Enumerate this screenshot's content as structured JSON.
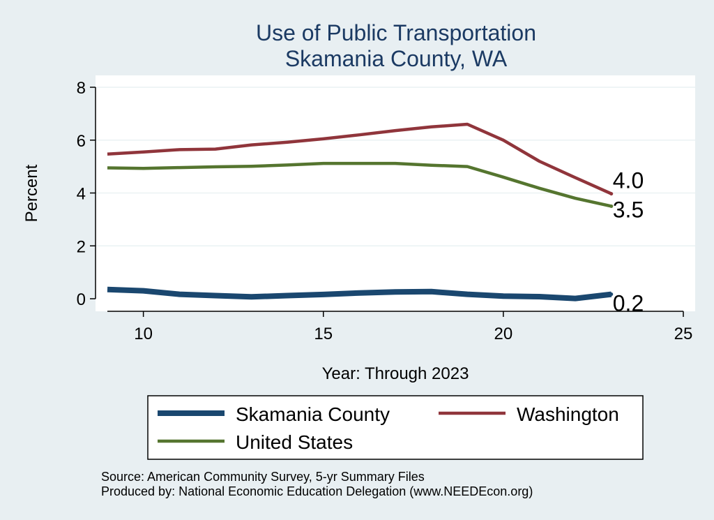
{
  "chart_data": {
    "type": "line",
    "title": "Use of Public Transportation",
    "subtitle": "Skamania County, WA",
    "xlabel": "Year: Through 2023",
    "ylabel": "Percent",
    "xlim": [
      9,
      25
    ],
    "ylim": [
      0,
      8
    ],
    "xticks": [
      10,
      15,
      20,
      25
    ],
    "yticks": [
      0,
      2,
      4,
      6,
      8
    ],
    "grid": true,
    "legend_position": "bottom",
    "series": [
      {
        "name": "Skamania County",
        "color": "#1a476f",
        "x": [
          9,
          10,
          11,
          12,
          13,
          14,
          15,
          16,
          17,
          18,
          19,
          20,
          21,
          22,
          23
        ],
        "y": [
          0.35,
          0.3,
          0.17,
          0.12,
          0.07,
          0.12,
          0.16,
          0.22,
          0.26,
          0.27,
          0.17,
          0.1,
          0.08,
          0.01,
          0.17
        ],
        "end_label": "0.2"
      },
      {
        "name": "Washington",
        "color": "#90353b",
        "x": [
          9,
          10,
          11,
          12,
          13,
          14,
          15,
          16,
          17,
          18,
          19,
          20,
          21,
          22,
          23
        ],
        "y": [
          5.47,
          5.55,
          5.64,
          5.66,
          5.82,
          5.92,
          6.05,
          6.2,
          6.36,
          6.5,
          6.6,
          6.0,
          5.2,
          4.58,
          3.97
        ],
        "end_label": "4.0"
      },
      {
        "name": "United States",
        "color": "#55752f",
        "x": [
          9,
          10,
          11,
          12,
          13,
          14,
          15,
          16,
          17,
          18,
          19,
          20,
          21,
          22,
          23
        ],
        "y": [
          4.95,
          4.93,
          4.96,
          4.99,
          5.01,
          5.06,
          5.12,
          5.12,
          5.12,
          5.05,
          5.0,
          4.6,
          4.18,
          3.8,
          3.5
        ],
        "end_label": "3.5"
      }
    ],
    "notes": [
      "Source: American Community Survey, 5-yr Summary Files",
      "Produced by: National Economic Education Delegation (www.NEEDEcon.org)"
    ]
  }
}
